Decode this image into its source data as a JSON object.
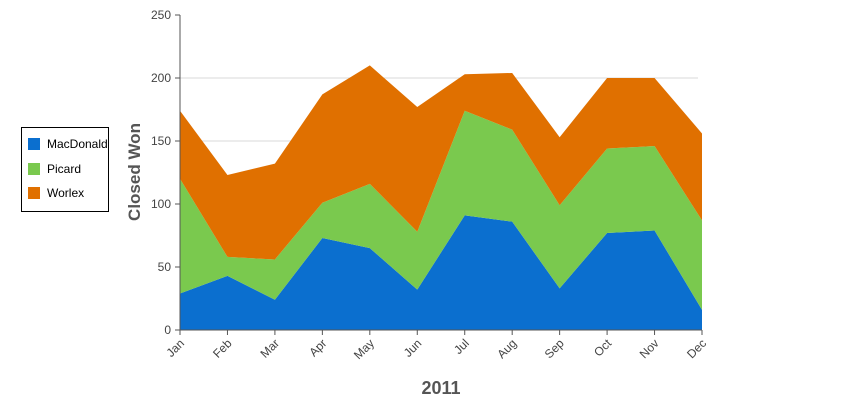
{
  "chart_data": {
    "type": "area",
    "stacked": true,
    "categories": [
      "Jan",
      "Feb",
      "Mar",
      "Apr",
      "May",
      "Jun",
      "Jul",
      "Aug",
      "Sep",
      "Oct",
      "Nov",
      "Dec"
    ],
    "series": [
      {
        "name": "MacDonald",
        "color": "#0b6fcf",
        "values": [
          29,
          43,
          24,
          73,
          65,
          32,
          91,
          86,
          33,
          77,
          79,
          16
        ]
      },
      {
        "name": "Picard",
        "color": "#7ac94e",
        "values": [
          91,
          15,
          32,
          28,
          51,
          46,
          83,
          73,
          66,
          67,
          67,
          71
        ]
      },
      {
        "name": "Worlex",
        "color": "#e07000",
        "values": [
          54,
          65,
          76,
          86,
          94,
          99,
          29,
          45,
          54,
          56,
          54,
          69
        ]
      }
    ],
    "xlabel": "2011",
    "ylabel": "Closed Won",
    "ylim": [
      0,
      250
    ],
    "yticks": [
      0,
      50,
      100,
      150,
      200,
      250
    ],
    "grid": true,
    "legend_position": "left"
  }
}
